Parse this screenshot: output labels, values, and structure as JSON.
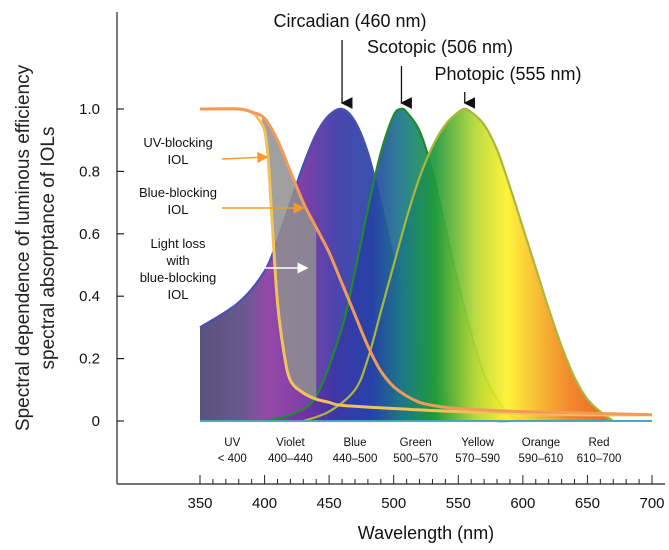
{
  "chart_data": {
    "type": "area",
    "ylabel_line1": "Spectral dependence of luminous efficiency",
    "ylabel_line2": "spectral absorptance of IOLs",
    "xlabel": "Wavelength (nm)",
    "xlim": [
      350,
      700
    ],
    "ylim": [
      0,
      1.0
    ],
    "x_ticks": [
      "350",
      "400",
      "450",
      "500",
      "550",
      "600",
      "650",
      "700"
    ],
    "y_ticks": [
      "0",
      "0.2",
      "0.4",
      "0.6",
      "0.8",
      "1.0"
    ],
    "bands": [
      {
        "name": "UV",
        "range": "< 400",
        "center": 375
      },
      {
        "name": "Violet",
        "range": "400–440",
        "center": 420
      },
      {
        "name": "Blue",
        "range": "440–500",
        "center": 470
      },
      {
        "name": "Green",
        "range": "500–570",
        "center": 517
      },
      {
        "name": "Yellow",
        "range": "570–590",
        "center": 565
      },
      {
        "name": "Orange",
        "range": "590–610",
        "center": 614
      },
      {
        "name": "Red",
        "range": "610–700",
        "center": 659
      }
    ],
    "peaks": [
      {
        "label": "Circadian (460 nm)",
        "x": 460
      },
      {
        "label": "Scotopic (506 nm)",
        "x": 506
      },
      {
        "label": "Photopic (555 nm)",
        "x": 555
      }
    ],
    "series": [
      {
        "name": "Circadian",
        "color": "#4a4fb0",
        "peak": 460,
        "x": [
          350,
          380,
          400,
          410,
          420,
          430,
          440,
          450,
          460,
          470,
          480,
          490,
          500,
          510,
          520,
          530,
          540,
          550,
          560,
          570,
          580,
          590
        ],
        "y": [
          0.3,
          0.38,
          0.48,
          0.58,
          0.7,
          0.82,
          0.92,
          0.98,
          1.0,
          0.96,
          0.86,
          0.7,
          0.52,
          0.36,
          0.23,
          0.14,
          0.08,
          0.04,
          0.02,
          0.01,
          0.0,
          0.0
        ]
      },
      {
        "name": "Scotopic",
        "color": "#1f8a2e",
        "peak": 506,
        "x": [
          400,
          420,
          440,
          460,
          470,
          480,
          490,
          500,
          506,
          510,
          520,
          530,
          540,
          550,
          560,
          570,
          580,
          590,
          600
        ],
        "y": [
          0.0,
          0.02,
          0.08,
          0.3,
          0.48,
          0.68,
          0.86,
          0.98,
          1.0,
          0.99,
          0.93,
          0.8,
          0.62,
          0.44,
          0.28,
          0.15,
          0.07,
          0.02,
          0.0
        ]
      },
      {
        "name": "Photopic",
        "color": "#a8b83a",
        "peak": 555,
        "x": [
          430,
          450,
          470,
          480,
          490,
          500,
          510,
          520,
          530,
          540,
          550,
          555,
          560,
          570,
          580,
          590,
          600,
          610,
          620,
          630,
          640,
          650,
          660,
          670
        ],
        "y": [
          0.0,
          0.03,
          0.1,
          0.2,
          0.35,
          0.5,
          0.65,
          0.78,
          0.88,
          0.95,
          0.99,
          1.0,
          0.99,
          0.95,
          0.87,
          0.75,
          0.62,
          0.49,
          0.36,
          0.24,
          0.14,
          0.07,
          0.03,
          0.0
        ]
      },
      {
        "name": "UV-blocking IOL",
        "color": "#f2c25a",
        "x": [
          350,
          360,
          370,
          380,
          390,
          395,
          400,
          403,
          406,
          410,
          415,
          420,
          430,
          440,
          450,
          460,
          500,
          550,
          600,
          650,
          700
        ],
        "y": [
          1.0,
          1.0,
          1.0,
          1.0,
          0.99,
          0.97,
          0.93,
          0.83,
          0.63,
          0.38,
          0.22,
          0.13,
          0.09,
          0.07,
          0.06,
          0.05,
          0.04,
          0.03,
          0.025,
          0.02,
          0.02
        ]
      },
      {
        "name": "Blue-blocking IOL",
        "color": "#f29a5a",
        "x": [
          350,
          380,
          390,
          400,
          410,
          420,
          430,
          440,
          450,
          460,
          470,
          480,
          490,
          500,
          510,
          520,
          530,
          550,
          600,
          650,
          700
        ],
        "y": [
          1.0,
          1.0,
          0.99,
          0.97,
          0.9,
          0.8,
          0.7,
          0.62,
          0.54,
          0.44,
          0.34,
          0.24,
          0.16,
          0.11,
          0.08,
          0.06,
          0.05,
          0.04,
          0.03,
          0.025,
          0.02
        ]
      }
    ],
    "annotations": [
      {
        "lines": [
          "UV-blocking",
          "IOL"
        ]
      },
      {
        "lines": [
          "Blue-blocking",
          "IOL"
        ]
      },
      {
        "lines": [
          "Light loss",
          "with",
          "blue-blocking",
          "IOL"
        ]
      }
    ],
    "grid": false
  }
}
